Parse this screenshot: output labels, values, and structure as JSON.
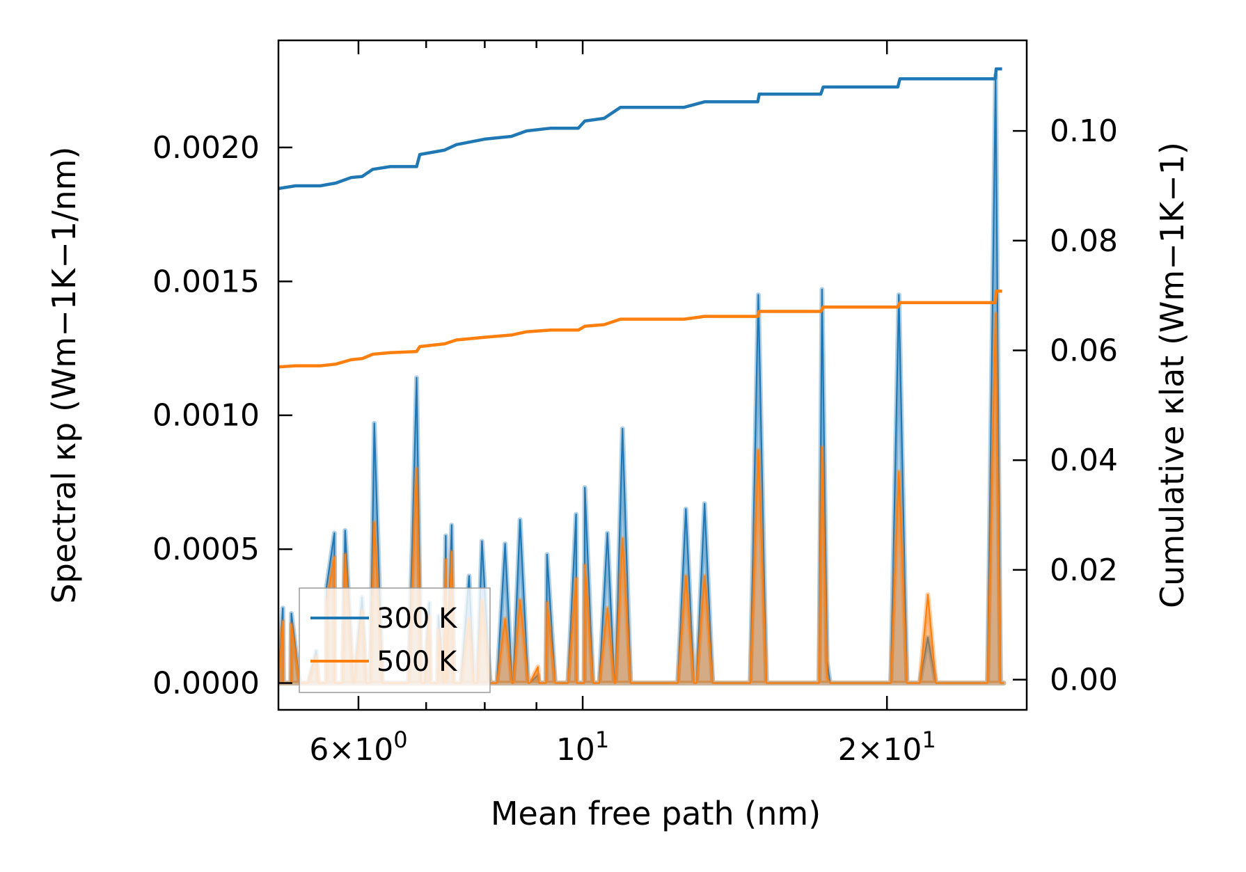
{
  "chart_data": {
    "type": "line",
    "x_scale": "log",
    "xlim": [
      5.0,
      27.5
    ],
    "xlabel": "Mean free path (nm)",
    "xticks": [
      {
        "value": 6,
        "label": "6×10^0"
      },
      {
        "value": 10,
        "label": "10^1"
      },
      {
        "value": 20,
        "label": "2×10^1"
      }
    ],
    "ylabel_left": "Spectral κp (Wm−1K−1/nm)",
    "ylim_left": [
      -0.0001,
      0.0024
    ],
    "yticks_left": [
      {
        "value": 0.0,
        "label": "0.0000"
      },
      {
        "value": 0.0005,
        "label": "0.0005"
      },
      {
        "value": 0.001,
        "label": "0.0010"
      },
      {
        "value": 0.0015,
        "label": "0.0015"
      },
      {
        "value": 0.002,
        "label": "0.0020"
      }
    ],
    "ylabel_right": "Cumulative κlat (Wm−1K−1)",
    "ylim_right": [
      -0.0055,
      0.1165
    ],
    "yticks_right": [
      {
        "value": 0.0,
        "label": "0.00"
      },
      {
        "value": 0.02,
        "label": "0.02"
      },
      {
        "value": 0.04,
        "label": "0.04"
      },
      {
        "value": 0.06,
        "label": "0.06"
      },
      {
        "value": 0.08,
        "label": "0.08"
      },
      {
        "value": 0.1,
        "label": "0.10"
      }
    ],
    "legend": {
      "position": "lower-left",
      "entries": [
        "300 K",
        "500 K"
      ]
    },
    "series": [
      {
        "name": "300 K",
        "color": "#1f77b4",
        "spectral_peaks": [
          [
            5.05,
            0.00028
          ],
          [
            5.15,
            0.00026
          ],
          [
            5.45,
            0.00012
          ],
          [
            5.58,
            0.00036
          ],
          [
            5.68,
            0.00056
          ],
          [
            5.82,
            0.00057
          ],
          [
            6.05,
            0.00032
          ],
          [
            6.22,
            0.00097
          ],
          [
            6.85,
            0.00114
          ],
          [
            7.05,
            0.0003
          ],
          [
            7.2,
            0.00025
          ],
          [
            7.32,
            0.00055
          ],
          [
            7.42,
            0.00059
          ],
          [
            7.72,
            0.0004
          ],
          [
            7.95,
            0.00053
          ],
          [
            8.38,
            0.00052
          ],
          [
            8.67,
            0.00061
          ],
          [
            9.03,
            3e-05
          ],
          [
            9.22,
            0.00048
          ],
          [
            9.85,
            0.00063
          ],
          [
            10.05,
            0.00073
          ],
          [
            10.58,
            0.00056
          ],
          [
            10.95,
            0.00095
          ],
          [
            12.65,
            0.00065
          ],
          [
            13.2,
            0.00067
          ],
          [
            14.92,
            0.00145
          ],
          [
            17.25,
            0.00147
          ],
          [
            17.45,
            8e-05
          ],
          [
            20.55,
            0.00145
          ],
          [
            21.95,
            0.00017
          ],
          [
            25.62,
            0.00227
          ]
        ],
        "cumulative": [
          [
            5.0,
            0.0895
          ],
          [
            5.2,
            0.09
          ],
          [
            5.5,
            0.09
          ],
          [
            5.7,
            0.0905
          ],
          [
            5.9,
            0.0915
          ],
          [
            6.05,
            0.0917
          ],
          [
            6.2,
            0.093
          ],
          [
            6.45,
            0.0935
          ],
          [
            6.85,
            0.0935
          ],
          [
            6.9,
            0.0957
          ],
          [
            7.3,
            0.0965
          ],
          [
            7.5,
            0.0975
          ],
          [
            8.0,
            0.0985
          ],
          [
            8.5,
            0.099
          ],
          [
            8.8,
            0.1
          ],
          [
            9.3,
            0.1005
          ],
          [
            9.9,
            0.1005
          ],
          [
            10.05,
            0.1018
          ],
          [
            10.5,
            0.1023
          ],
          [
            10.9,
            0.1043
          ],
          [
            12.6,
            0.1043
          ],
          [
            13.2,
            0.1053
          ],
          [
            14.9,
            0.1053
          ],
          [
            14.95,
            0.1067
          ],
          [
            17.2,
            0.1067
          ],
          [
            17.3,
            0.108
          ],
          [
            20.5,
            0.108
          ],
          [
            20.6,
            0.1095
          ],
          [
            25.6,
            0.1095
          ],
          [
            25.65,
            0.1113
          ],
          [
            26.0,
            0.1113
          ]
        ]
      },
      {
        "name": "500 K",
        "color": "#ff7f0e",
        "spectral_peaks": [
          [
            5.05,
            0.00023
          ],
          [
            5.15,
            0.00022
          ],
          [
            5.45,
            0.0001
          ],
          [
            5.58,
            0.0003
          ],
          [
            5.68,
            0.00047
          ],
          [
            5.82,
            0.00048
          ],
          [
            6.05,
            0.00027
          ],
          [
            6.22,
            0.0006
          ],
          [
            6.85,
            0.0008
          ],
          [
            7.05,
            0.00025
          ],
          [
            7.2,
            0.0002
          ],
          [
            7.32,
            0.00046
          ],
          [
            7.42,
            0.00049
          ],
          [
            7.72,
            0.00024
          ],
          [
            7.95,
            0.00031
          ],
          [
            8.38,
            0.00024
          ],
          [
            8.67,
            0.00031
          ],
          [
            9.03,
            6e-05
          ],
          [
            9.22,
            0.0003
          ],
          [
            9.85,
            0.00039
          ],
          [
            10.05,
            0.00044
          ],
          [
            10.58,
            0.00028
          ],
          [
            10.95,
            0.00054
          ],
          [
            12.65,
            0.0004
          ],
          [
            13.2,
            0.0004
          ],
          [
            14.92,
            0.00087
          ],
          [
            17.25,
            0.00088
          ],
          [
            17.45,
            2e-05
          ],
          [
            20.55,
            0.00079
          ],
          [
            21.95,
            0.00033
          ],
          [
            25.62,
            0.00138
          ]
        ],
        "cumulative": [
          [
            5.0,
            0.057
          ],
          [
            5.2,
            0.0572
          ],
          [
            5.5,
            0.0572
          ],
          [
            5.7,
            0.0575
          ],
          [
            5.9,
            0.0583
          ],
          [
            6.05,
            0.0585
          ],
          [
            6.2,
            0.0593
          ],
          [
            6.45,
            0.0596
          ],
          [
            6.85,
            0.0598
          ],
          [
            6.9,
            0.0607
          ],
          [
            7.3,
            0.0612
          ],
          [
            7.5,
            0.0619
          ],
          [
            8.0,
            0.0624
          ],
          [
            8.5,
            0.0628
          ],
          [
            8.8,
            0.0634
          ],
          [
            9.3,
            0.0637
          ],
          [
            9.9,
            0.0637
          ],
          [
            10.05,
            0.0644
          ],
          [
            10.5,
            0.0647
          ],
          [
            10.9,
            0.0657
          ],
          [
            12.6,
            0.0657
          ],
          [
            13.2,
            0.0662
          ],
          [
            14.9,
            0.0662
          ],
          [
            14.95,
            0.0671
          ],
          [
            17.2,
            0.0671
          ],
          [
            17.3,
            0.0679
          ],
          [
            20.5,
            0.0679
          ],
          [
            20.6,
            0.0687
          ],
          [
            25.6,
            0.0687
          ],
          [
            25.65,
            0.0708
          ],
          [
            26.0,
            0.0708
          ]
        ]
      }
    ]
  }
}
